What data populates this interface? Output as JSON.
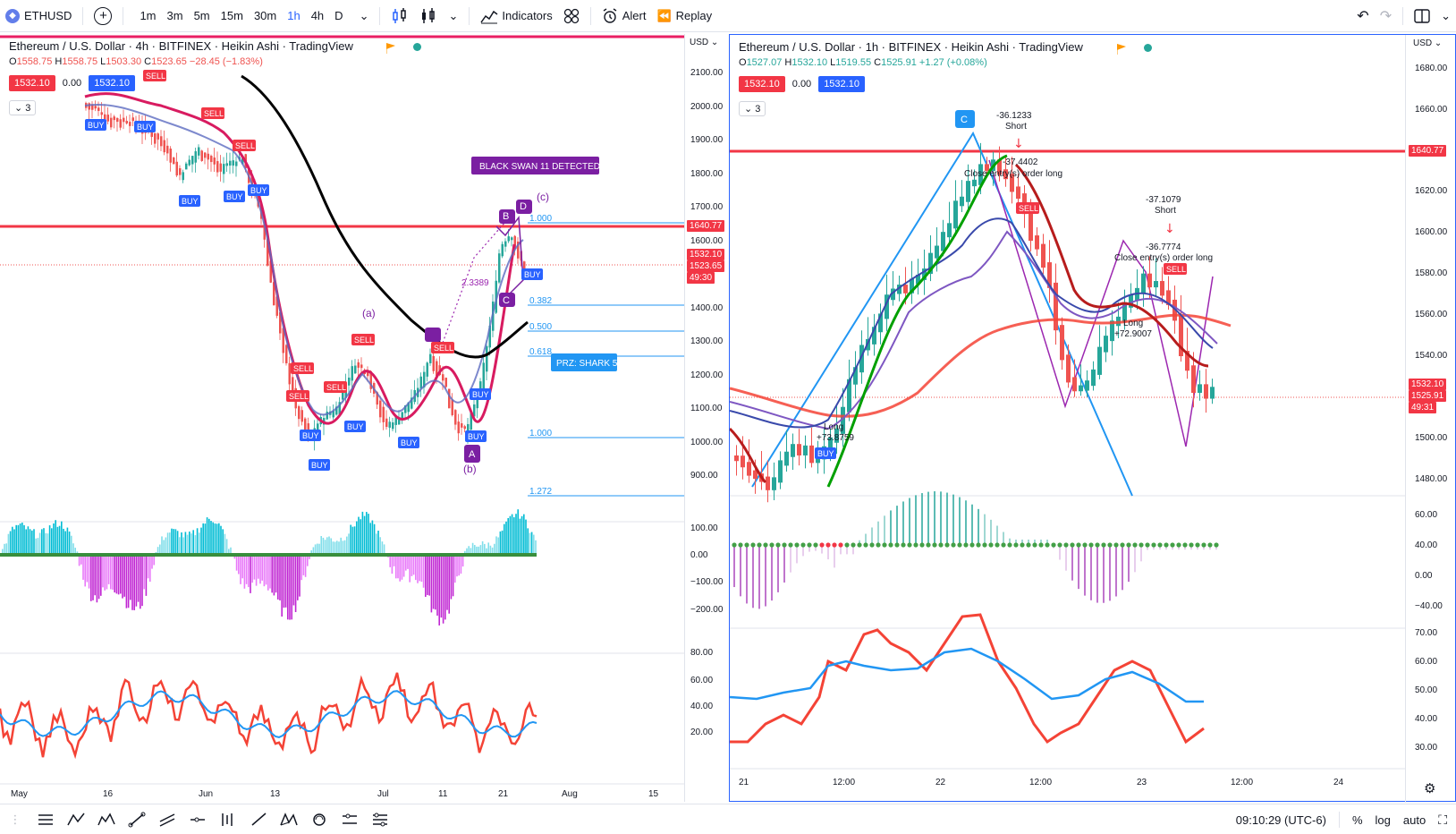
{
  "toolbar": {
    "symbol": "ETHUSD",
    "timeframes": [
      "1m",
      "3m",
      "5m",
      "15m",
      "30m",
      "1h",
      "4h",
      "D"
    ],
    "active_timeframe": "1h",
    "indicators_label": "Indicators",
    "alert_label": "Alert",
    "replay_label": "Replay"
  },
  "left_chart": {
    "title": "Ethereum / U.S. Dollar · 4h · BITFINEX · Heikin Ashi · TradingView",
    "ohlc": {
      "o": "1558.75",
      "h": "1558.75",
      "l": "1503.30",
      "c": "1523.65",
      "change": "−28.45 (−1.83%)"
    },
    "chip_bid": "1532.10",
    "chip_spread": "0.00",
    "chip_ask": "1532.10",
    "indicator_count": "3",
    "currency": "USD",
    "price_ticks": [
      "2100.00",
      "2000.00",
      "1900.00",
      "1800.00",
      "1700.00",
      "1600.00",
      "1400.00",
      "1300.00",
      "1200.00",
      "1100.00",
      "1000.00",
      "900.00"
    ],
    "resistance_tag": "1640.77",
    "last_price_tag": "1532.10",
    "close_tag": "1523.65",
    "countdown_tag": "49:30",
    "osc_ticks": [
      "100.00",
      "0.00",
      "−100.00",
      "−200.00"
    ],
    "rsi_ticks": [
      "80.00",
      "60.00",
      "40.00",
      "20.00"
    ],
    "time_ticks": [
      "May",
      "16",
      "Jun",
      "13",
      "Jul",
      "11",
      "21",
      "Aug",
      "15"
    ],
    "fib_labels": [
      "1.000",
      "0.382",
      "0.500",
      "0.618",
      "1.000",
      "1.272"
    ],
    "black_swan": "BLACK SWAN 11 DETECTED",
    "prz": "PRZ: SHARK 5",
    "pattern_points": [
      "B",
      "D",
      "C",
      "A"
    ],
    "wave_labels": [
      "(a)",
      "(b)",
      "(c)"
    ],
    "ratio_label": "2.3389",
    "buy_label": "BUY",
    "sell_label": "SELL"
  },
  "right_chart": {
    "title": "Ethereum / U.S. Dollar · 1h · BITFINEX · Heikin Ashi · TradingView",
    "ohlc": {
      "o": "1527.07",
      "h": "1532.10",
      "l": "1519.55",
      "c": "1525.91",
      "change": "+1.27 (+0.08%)"
    },
    "chip_bid": "1532.10",
    "chip_spread": "0.00",
    "chip_ask": "1532.10",
    "indicator_count": "3",
    "currency": "USD",
    "price_ticks": [
      "1680.00",
      "1660.00",
      "1620.00",
      "1600.00",
      "1580.00",
      "1560.00",
      "1540.00",
      "1500.00",
      "1480.00"
    ],
    "resistance_tag": "1640.77",
    "last_price_tag": "1532.10",
    "close_tag": "1525.91",
    "countdown_tag": "49:31",
    "osc_ticks": [
      "60.00",
      "40.00",
      "0.00",
      "−40.00"
    ],
    "rsi_ticks": [
      "70.00",
      "60.00",
      "50.00",
      "40.00",
      "30.00"
    ],
    "time_ticks": [
      "21",
      "12:00",
      "22",
      "12:00",
      "23",
      "12:00",
      "24"
    ],
    "point_c": "C",
    "annotations": {
      "short1_value": "-36.1233",
      "short1_label": "Short",
      "close1_value": "-37.4402",
      "close1_label": "Close entry(s) order long",
      "short2_value": "-37.1079",
      "short2_label": "Short",
      "close2_value": "-36.7774",
      "close2_label": "Close entry(s) order long",
      "long1_label": "Long",
      "long1_value": "+73.8759",
      "long2_label": "Long",
      "long2_value": "+72.9007"
    },
    "buy_label": "BUY",
    "sell_label": "SELL"
  },
  "status": {
    "time": "09:10:29 (UTC-6)",
    "percent": "%",
    "log": "log",
    "auto": "auto"
  },
  "colors": {
    "accent": "#2962ff",
    "up": "#26a69a",
    "down": "#ef5350",
    "resistance": "#f23645"
  }
}
